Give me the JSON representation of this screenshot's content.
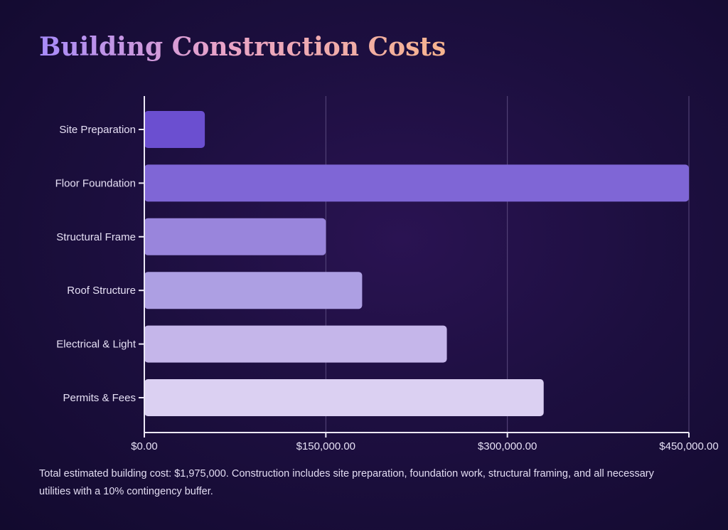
{
  "title": "Building Construction Costs",
  "footnote": "Total estimated building cost: $1,975,000. Construction includes site preparation, foundation work, structural framing, and all necessary utilities with a 10% contingency buffer.",
  "chart_data": {
    "type": "bar",
    "orientation": "horizontal",
    "categories": [
      "Site Preparation",
      "Floor Foundation",
      "Structural Frame",
      "Roof Structure",
      "Electrical & Light",
      "Permits & Fees"
    ],
    "values": [
      50000,
      450000,
      150000,
      180000,
      250000,
      330000
    ],
    "xlim": [
      0,
      450000
    ],
    "xticks": [
      0,
      150000,
      300000,
      450000
    ],
    "xtick_labels": [
      "$0.00",
      "$150,000.00",
      "$300,000.00",
      "$450,000.00"
    ],
    "grid": "vertical",
    "legend": "none",
    "colors": [
      "#6b4fd0",
      "#7f66d6",
      "#9985dc",
      "#ad9fe3",
      "#c5b6ea",
      "#dbd0f2"
    ]
  },
  "colors": {
    "axis": "#ece8f6",
    "grid": "#5a4a7e",
    "label": "#e6e0f5"
  }
}
